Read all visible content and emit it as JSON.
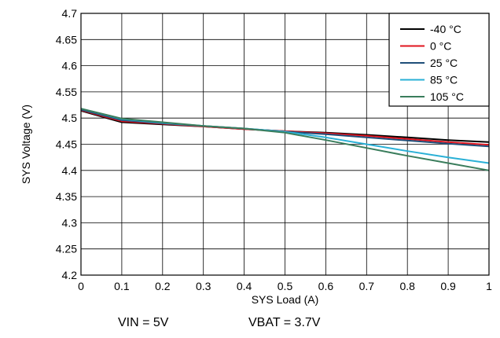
{
  "chart_data": {
    "type": "line",
    "title": "",
    "xlabel": "SYS Load (A)",
    "ylabel": "SYS Voltage (V)",
    "xlim": [
      0,
      1
    ],
    "ylim": [
      4.2,
      4.7
    ],
    "xticks": [
      "0",
      "0.1",
      "0.2",
      "0.3",
      "0.4",
      "0.5",
      "0.6",
      "0.7",
      "0.8",
      "0.9",
      "1"
    ],
    "yticks": [
      "4.2",
      "4.25",
      "4.3",
      "4.35",
      "4.4",
      "4.45",
      "4.5",
      "4.55",
      "4.6",
      "4.65",
      "4.7"
    ],
    "grid": true,
    "legend_position": "top-right",
    "series": [
      {
        "name": "-40 °C",
        "color": "#000000",
        "x": [
          0,
          0.1,
          0.2,
          0.3,
          0.4,
          0.5,
          0.6,
          0.7,
          0.8,
          0.9,
          1
        ],
        "y": [
          4.514,
          4.492,
          4.488,
          4.484,
          4.479,
          4.475,
          4.472,
          4.468,
          4.463,
          4.458,
          4.454
        ]
      },
      {
        "name": "0 °C",
        "color": "#e0141e",
        "x": [
          0,
          0.1,
          0.2,
          0.3,
          0.4,
          0.5,
          0.6,
          0.7,
          0.8,
          0.9,
          1
        ],
        "y": [
          4.515,
          4.494,
          4.489,
          4.484,
          4.479,
          4.475,
          4.471,
          4.466,
          4.46,
          4.454,
          4.449
        ]
      },
      {
        "name": "25 °C",
        "color": "#1f4e79",
        "x": [
          0,
          0.1,
          0.2,
          0.3,
          0.4,
          0.5,
          0.6,
          0.7,
          0.8,
          0.9,
          1
        ],
        "y": [
          4.516,
          4.496,
          4.49,
          4.485,
          4.48,
          4.474,
          4.469,
          4.463,
          4.457,
          4.451,
          4.446
        ]
      },
      {
        "name": "85 °C",
        "color": "#2ab0d6",
        "x": [
          0,
          0.1,
          0.2,
          0.3,
          0.4,
          0.5,
          0.6,
          0.7,
          0.8,
          0.9,
          1
        ],
        "y": [
          4.518,
          4.498,
          4.491,
          4.485,
          4.48,
          4.474,
          4.463,
          4.45,
          4.437,
          4.425,
          4.414
        ]
      },
      {
        "name": "105 °C",
        "color": "#3a7d5c",
        "x": [
          0,
          0.1,
          0.2,
          0.3,
          0.4,
          0.5,
          0.6,
          0.7,
          0.8,
          0.9,
          1
        ],
        "y": [
          4.518,
          4.499,
          4.492,
          4.485,
          4.48,
          4.472,
          4.458,
          4.443,
          4.428,
          4.414,
          4.4
        ]
      }
    ]
  },
  "captions": {
    "vin": "VIN = 5V",
    "vbat": "VBAT = 3.7V"
  }
}
